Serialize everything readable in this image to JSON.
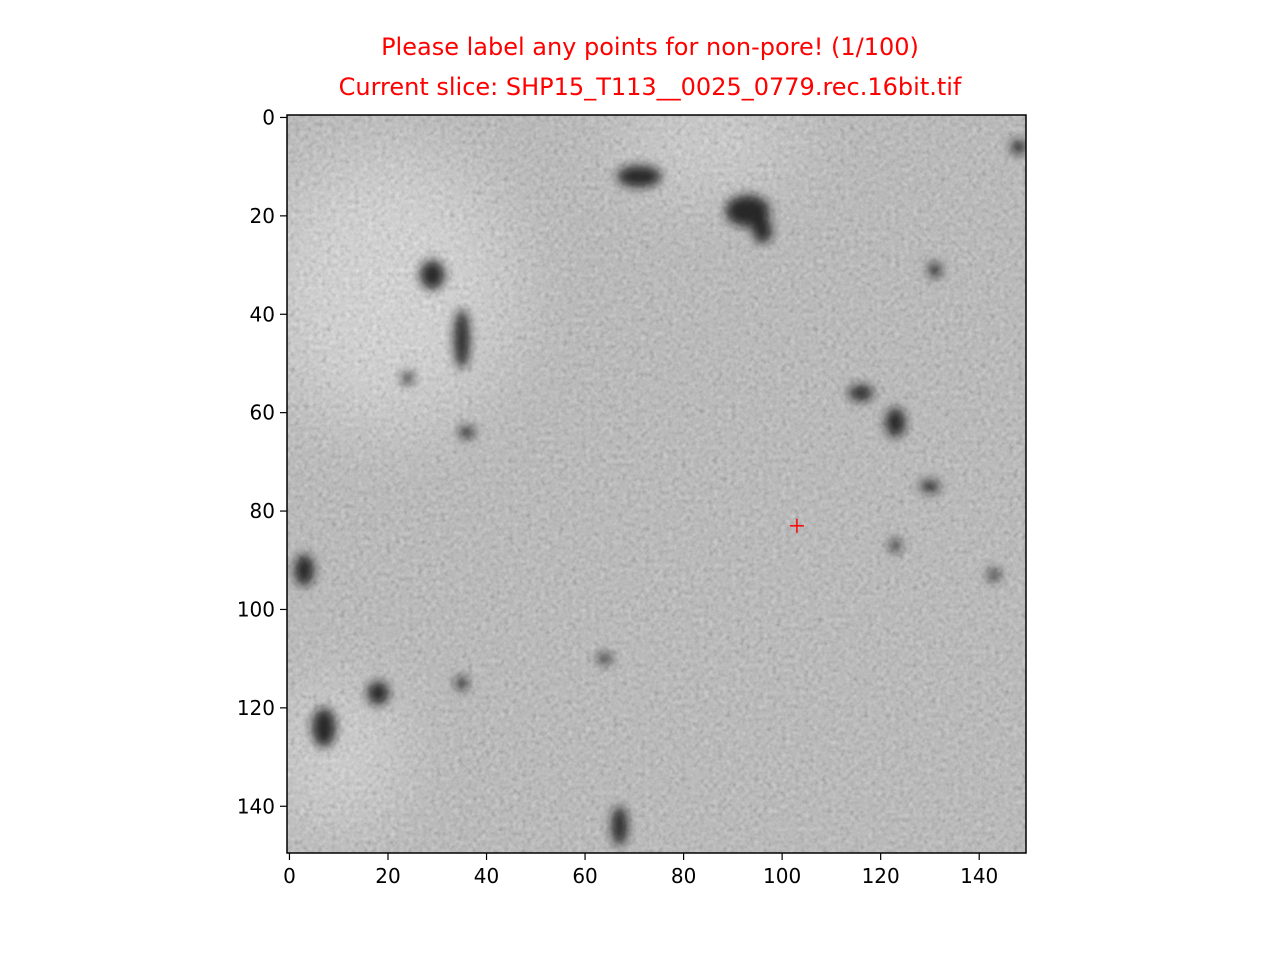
{
  "window": {
    "title_line_1": "Please label any points for non-pore! (1/100)",
    "title_line_2": "Current slice: SHP15_T113__0025_0779.rec.16bit.tif"
  },
  "colors": {
    "title": "#ff0000",
    "marker": "#ff0000",
    "axes": "#000000",
    "background": "#ffffff"
  },
  "chart_data": {
    "type": "heatmap",
    "title": "Please label any points for non-pore! (1/100)\nCurrent slice: SHP15_T113__0025_0779.rec.16bit.tif",
    "colormap": "gray",
    "xlim": [
      -0.5,
      149.5
    ],
    "ylim": [
      149.5,
      -0.5
    ],
    "x_ticks": [
      0,
      20,
      40,
      60,
      80,
      100,
      120,
      140
    ],
    "y_ticks": [
      0,
      20,
      40,
      60,
      80,
      100,
      120,
      140
    ],
    "x_tick_labels": [
      "0",
      "20",
      "40",
      "60",
      "80",
      "100",
      "120",
      "140"
    ],
    "y_tick_labels": [
      "0",
      "20",
      "40",
      "60",
      "80",
      "100",
      "120",
      "140"
    ],
    "grid": false,
    "markers": [
      {
        "x": 103,
        "y": 83,
        "symbol": "+",
        "color": "#ff0000"
      }
    ],
    "dark_regions": [
      {
        "x": 71,
        "y": 12,
        "rx": 4.5,
        "ry": 2.2
      },
      {
        "x": 93,
        "y": 19,
        "rx": 4.5,
        "ry": 3.2
      },
      {
        "x": 96,
        "y": 23,
        "rx": 2,
        "ry": 2.5
      },
      {
        "x": 29,
        "y": 32,
        "rx": 2.5,
        "ry": 3
      },
      {
        "x": 35,
        "y": 45,
        "rx": 1.6,
        "ry": 6
      },
      {
        "x": 116,
        "y": 56,
        "rx": 2.5,
        "ry": 1.6
      },
      {
        "x": 123,
        "y": 62,
        "rx": 2,
        "ry": 3
      },
      {
        "x": 3,
        "y": 92,
        "rx": 2,
        "ry": 3.2
      },
      {
        "x": 18,
        "y": 117,
        "rx": 2.2,
        "ry": 2.4
      },
      {
        "x": 7,
        "y": 124,
        "rx": 2.4,
        "ry": 4
      },
      {
        "x": 67,
        "y": 144,
        "rx": 1.6,
        "ry": 4
      },
      {
        "x": 148,
        "y": 6,
        "rx": 1.5,
        "ry": 1.5
      },
      {
        "x": 130,
        "y": 75,
        "rx": 2,
        "ry": 1.2
      },
      {
        "x": 36,
        "y": 64,
        "rx": 1.6,
        "ry": 1.2
      },
      {
        "x": 24,
        "y": 53,
        "rx": 1.2,
        "ry": 1.2
      },
      {
        "x": 35,
        "y": 115,
        "rx": 1.2,
        "ry": 1.4
      },
      {
        "x": 64,
        "y": 110,
        "rx": 1.5,
        "ry": 1
      },
      {
        "x": 131,
        "y": 31,
        "rx": 1.3,
        "ry": 1.5
      },
      {
        "x": 123,
        "y": 87,
        "rx": 1.2,
        "ry": 1.2
      },
      {
        "x": 143,
        "y": 93,
        "rx": 1.2,
        "ry": 1.2
      }
    ],
    "bright_regions": [
      {
        "x": 20,
        "y": 35,
        "rx": 25,
        "ry": 28
      },
      {
        "x": 10,
        "y": 130,
        "rx": 12,
        "ry": 14
      },
      {
        "x": 85,
        "y": 5,
        "rx": 18,
        "ry": 8
      }
    ]
  }
}
